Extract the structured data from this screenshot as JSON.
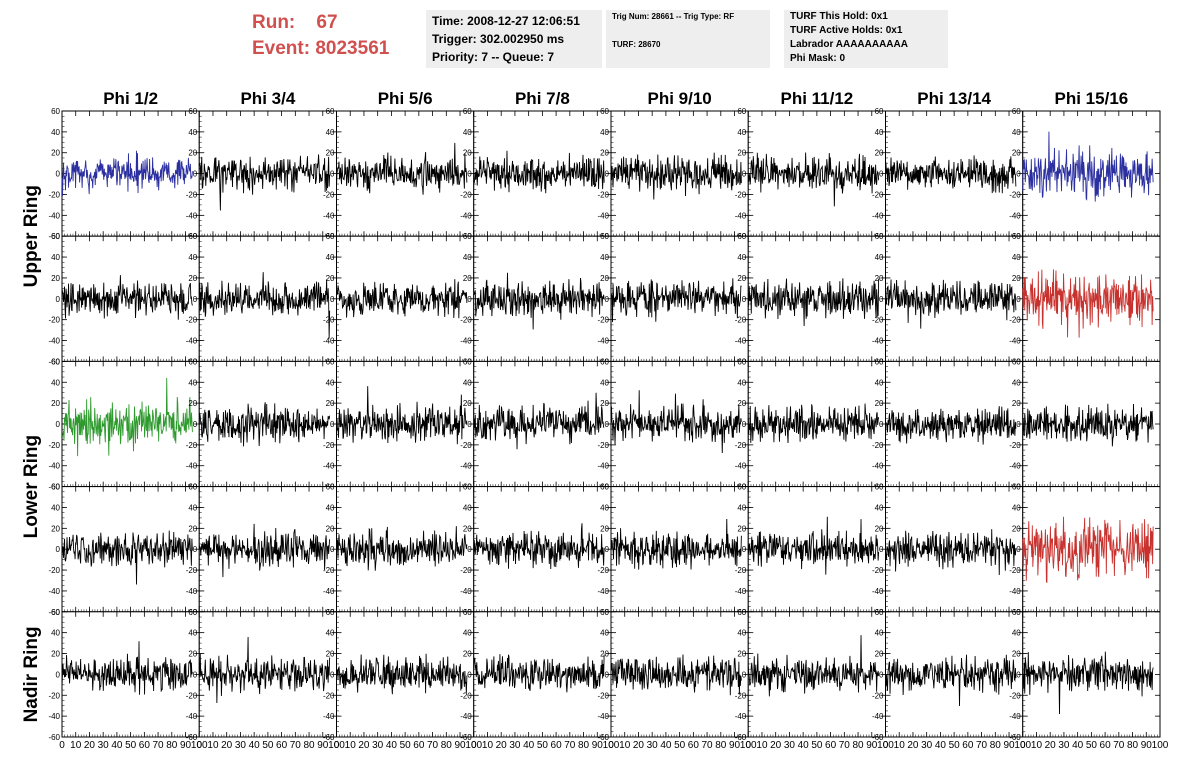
{
  "header": {
    "run_label": "Run:",
    "run_value": "67",
    "event_label": "Event:",
    "event_value": "8023561"
  },
  "info_box_1": {
    "line1": "Time: 2008-12-27 12:06:51",
    "line2": "Trigger: 302.002950 ms",
    "line3": "Priority: 7 -- Queue: 7"
  },
  "info_box_2": {
    "line1": "Trig Num: 28661 -- Trig Type: RF",
    "line2": "TURF: 28670"
  },
  "info_box_3": {
    "line1": "TURF This Hold: 0x1",
    "line2": "TURF Active Holds: 0x1",
    "line3": "Labrador AAAAAAAAAA",
    "line4": "Phi Mask: 0"
  },
  "colors": {
    "trace_default": "#000000",
    "trace_blue": "#2b2fa0",
    "trace_red": "#c8322e",
    "trace_green": "#2e9a2e",
    "header_text": "#d05050",
    "info_box_bg": "#eeeeee"
  },
  "chart_data": {
    "type": "line",
    "columns": [
      "Phi 1/2",
      "Phi 3/4",
      "Phi 5/6",
      "Phi 7/8",
      "Phi 9/10",
      "Phi 11/12",
      "Phi 13/14",
      "Phi 15/16"
    ],
    "row_groups": [
      {
        "label": "Upper Ring",
        "rows": [
          0,
          1
        ]
      },
      {
        "label": "Lower Ring",
        "rows": [
          2,
          3
        ]
      },
      {
        "label": "Nadir Ring",
        "rows": [
          4
        ]
      }
    ],
    "xlim": [
      0,
      100
    ],
    "ylim": [
      -60,
      60
    ],
    "x_ticks": [
      0,
      10,
      20,
      30,
      40,
      50,
      60,
      70,
      80,
      90,
      100
    ],
    "y_ticks": [
      -60,
      -40,
      -20,
      0,
      20,
      40,
      60
    ],
    "x_tick_labels": [
      "0",
      "10",
      "20",
      "30",
      "40",
      "50",
      "60",
      "70",
      "80",
      "90",
      "100"
    ],
    "y_tick_labels": [
      "-60",
      "-40",
      "-20",
      "0",
      "20",
      "40",
      "60"
    ],
    "sample_count": 260,
    "waveform_range_x": [
      0,
      95
    ],
    "highlighted": [
      {
        "row": 0,
        "col": 0,
        "color": "blue",
        "amplitude": 22
      },
      {
        "row": 0,
        "col": 7,
        "color": "blue",
        "amplitude": 32
      },
      {
        "row": 1,
        "col": 7,
        "color": "red",
        "amplitude": 38
      },
      {
        "row": 2,
        "col": 0,
        "color": "green",
        "amplitude": 30
      },
      {
        "row": 3,
        "col": 7,
        "color": "red",
        "amplitude": 40
      }
    ],
    "default_amplitude": 24
  }
}
